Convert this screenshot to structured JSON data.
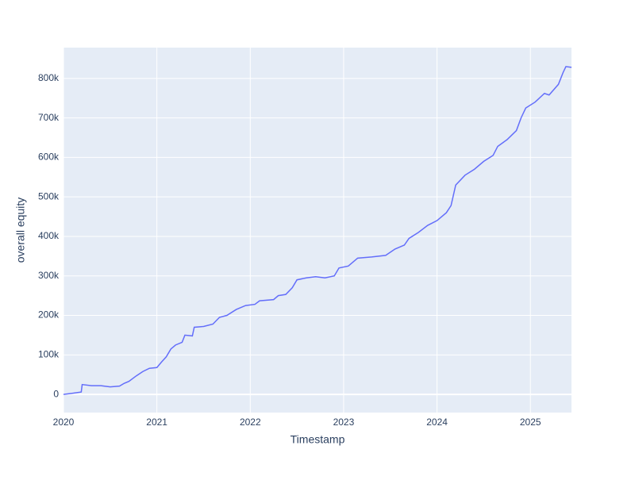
{
  "chart_data": {
    "type": "line",
    "x_label": "Timestamp",
    "y_label": "overall equity",
    "x": [
      2020.0,
      2020.1,
      2020.19,
      2020.2,
      2020.3,
      2020.4,
      2020.5,
      2020.6,
      2020.65,
      2020.7,
      2020.78,
      2020.85,
      2020.92,
      2021.0,
      2021.05,
      2021.1,
      2021.15,
      2021.2,
      2021.27,
      2021.3,
      2021.38,
      2021.4,
      2021.5,
      2021.6,
      2021.67,
      2021.75,
      2021.85,
      2021.95,
      2022.05,
      2022.1,
      2022.25,
      2022.3,
      2022.38,
      2022.45,
      2022.5,
      2022.6,
      2022.7,
      2022.8,
      2022.9,
      2022.95,
      2023.05,
      2023.15,
      2023.3,
      2023.45,
      2023.55,
      2023.65,
      2023.7,
      2023.8,
      2023.9,
      2024.0,
      2024.1,
      2024.15,
      2024.2,
      2024.3,
      2024.4,
      2024.5,
      2024.6,
      2024.65,
      2024.75,
      2024.85,
      2024.9,
      2024.95,
      2025.05,
      2025.15,
      2025.2,
      2025.3,
      2025.35,
      2025.38,
      2025.44
    ],
    "series": [
      {
        "color": "#636efa",
        "values": [
          0,
          3000,
          6000,
          25000,
          22000,
          22000,
          19000,
          21000,
          28000,
          33000,
          47000,
          58000,
          66000,
          68000,
          82000,
          95000,
          115000,
          125000,
          132000,
          150000,
          148000,
          170000,
          172000,
          178000,
          195000,
          200000,
          215000,
          225000,
          228000,
          237000,
          240000,
          250000,
          253000,
          270000,
          290000,
          295000,
          298000,
          295000,
          300000,
          320000,
          325000,
          345000,
          348000,
          352000,
          368000,
          378000,
          395000,
          410000,
          428000,
          440000,
          460000,
          478000,
          530000,
          555000,
          570000,
          590000,
          605000,
          628000,
          645000,
          668000,
          700000,
          725000,
          740000,
          762000,
          758000,
          785000,
          815000,
          830000,
          828000
        ]
      }
    ],
    "xlim": [
      2020,
      2025.44
    ],
    "xticks": [
      2020,
      2021,
      2022,
      2023,
      2024,
      2025
    ],
    "ylim": [
      -46000,
      878000
    ],
    "yticks": [
      0,
      {
        "value": 100000,
        "label": "100k"
      },
      {
        "value": 200000,
        "label": "200k"
      },
      {
        "value": 300000,
        "label": "300k"
      },
      {
        "value": 400000,
        "label": "400k"
      },
      {
        "value": 500000,
        "label": "500k"
      },
      {
        "value": 600000,
        "label": "600k"
      },
      {
        "value": 700000,
        "label": "700k"
      },
      {
        "value": 800000,
        "label": "800k"
      }
    ],
    "grid": true
  }
}
